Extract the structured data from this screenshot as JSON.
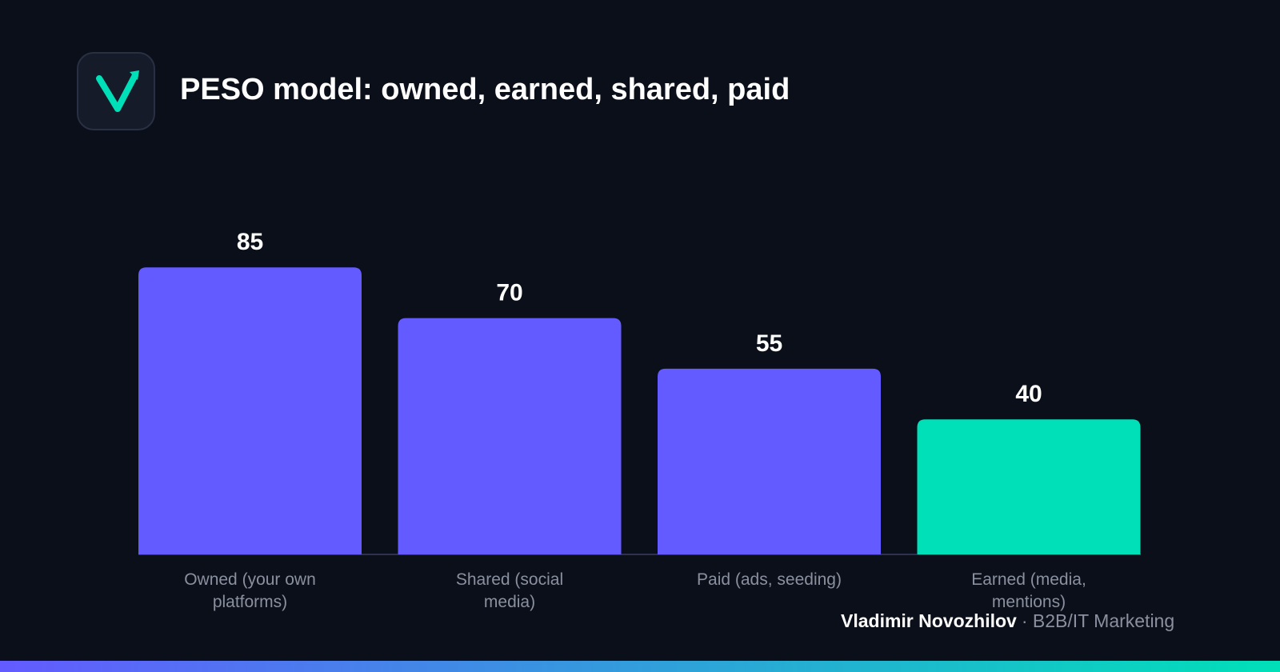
{
  "chart_data": {
    "type": "bar",
    "title": "PESO model: owned, earned, shared, paid",
    "categories": [
      "Owned (your own platforms)",
      "Shared (social media)",
      "Paid (ads, seeding)",
      "Earned (media, mentions)"
    ],
    "values": [
      85,
      70,
      55,
      40
    ],
    "colors": [
      "#635bff",
      "#635bff",
      "#635bff",
      "#00e0b8"
    ],
    "author": "Vladimir Novozhilov",
    "author_role": "· B2B/IT Marketing"
  }
}
